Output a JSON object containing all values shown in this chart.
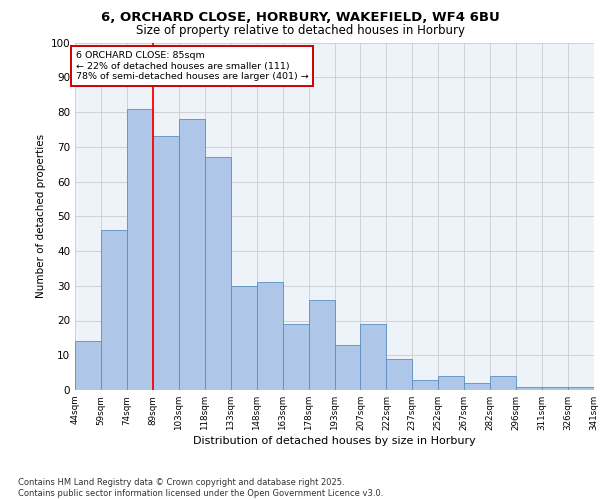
{
  "title_line1": "6, ORCHARD CLOSE, HORBURY, WAKEFIELD, WF4 6BU",
  "title_line2": "Size of property relative to detached houses in Horbury",
  "xlabel": "Distribution of detached houses by size in Horbury",
  "ylabel": "Number of detached properties",
  "bar_values": [
    14,
    46,
    81,
    73,
    78,
    67,
    30,
    31,
    19,
    26,
    13,
    19,
    9,
    3,
    4,
    2,
    4,
    1,
    1,
    1
  ],
  "categories": [
    "44sqm",
    "59sqm",
    "74sqm",
    "89sqm",
    "103sqm",
    "118sqm",
    "133sqm",
    "148sqm",
    "163sqm",
    "178sqm",
    "193sqm",
    "207sqm",
    "222sqm",
    "237sqm",
    "252sqm",
    "267sqm",
    "282sqm",
    "296sqm",
    "311sqm",
    "326sqm",
    "341sqm"
  ],
  "bar_color": "#aec6e8",
  "bar_edge_color": "#5a8fc0",
  "grid_color": "#cccccc",
  "red_line_index": 2,
  "annotation_text": "6 ORCHARD CLOSE: 85sqm\n← 22% of detached houses are smaller (111)\n78% of semi-detached houses are larger (401) →",
  "annotation_box_color": "#ffffff",
  "annotation_box_edge_color": "#cc0000",
  "footer_text": "Contains HM Land Registry data © Crown copyright and database right 2025.\nContains public sector information licensed under the Open Government Licence v3.0.",
  "ylim": [
    0,
    100
  ],
  "yticks": [
    0,
    10,
    20,
    30,
    40,
    50,
    60,
    70,
    80,
    90,
    100
  ],
  "bg_color": "#eef2f9"
}
